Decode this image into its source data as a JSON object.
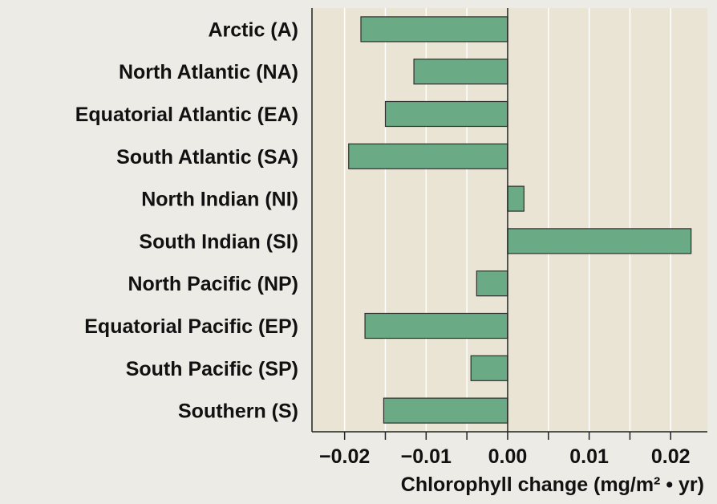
{
  "chart_data": {
    "type": "bar",
    "orientation": "horizontal",
    "categories": [
      "Arctic (A)",
      "North Atlantic (NA)",
      "Equatorial Atlantic (EA)",
      "South Atlantic (SA)",
      "North Indian (NI)",
      "South Indian (SI)",
      "North Pacific (NP)",
      "Equatorial Pacific (EP)",
      "South Pacific (SP)",
      "Southern (S)"
    ],
    "values": [
      -0.018,
      -0.0115,
      -0.015,
      -0.0195,
      0.002,
      0.0225,
      -0.0038,
      -0.0175,
      -0.0045,
      -0.0152
    ],
    "title": "",
    "xlabel": "Chlorophyll change (mg/m² • yr)",
    "ylabel": "",
    "xlim": [
      -0.024,
      0.0245
    ],
    "xticks": [
      -0.02,
      -0.01,
      0.0,
      0.01,
      0.02
    ],
    "xtick_labels": [
      "−0.02",
      "−0.01",
      "0.00",
      "0.01",
      "0.02"
    ],
    "grid": "vertical",
    "colors": {
      "bar": "#6aaa84",
      "bar_stroke": "#2e2e2e",
      "plot_bg": "#e9e4d4",
      "gridline": "#ffffff",
      "page_bg": "#ecebe6"
    }
  }
}
